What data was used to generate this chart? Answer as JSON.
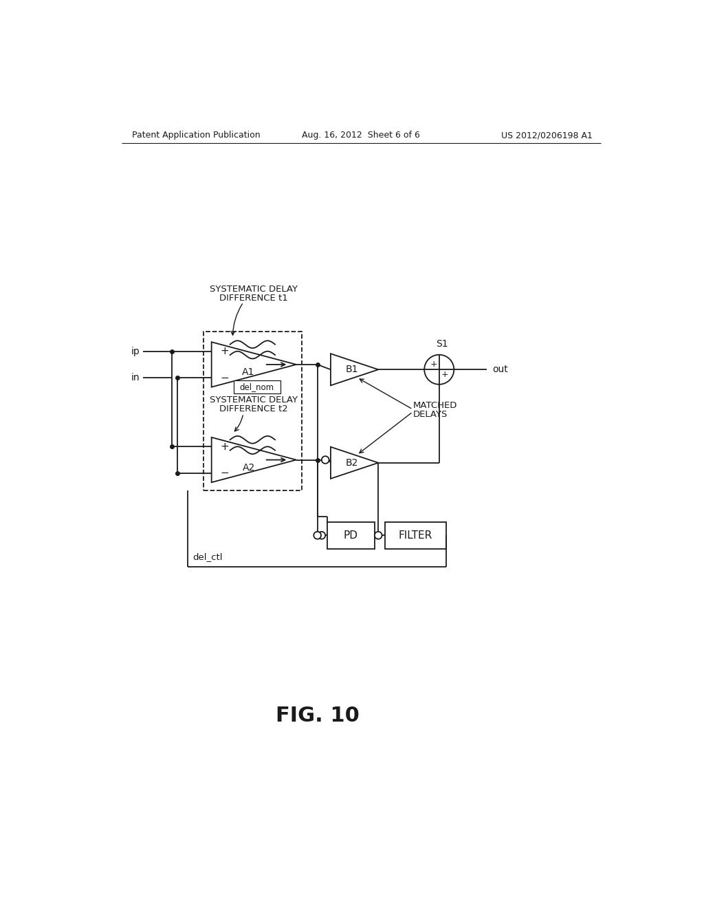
{
  "bg_color": "#ffffff",
  "line_color": "#1a1a1a",
  "line_width": 1.3,
  "header_left": "Patent Application Publication",
  "header_center": "Aug. 16, 2012  Sheet 6 of 6",
  "header_right": "US 2012/0206198 A1",
  "fig_label": "FIG. 10",
  "labels": {
    "ip": "ip",
    "in": "in",
    "out": "out",
    "A1": "A1",
    "A2": "A2",
    "B1": "B1",
    "B2": "B2",
    "S1": "S1",
    "PD": "PD",
    "FILTER": "FILTER",
    "del_nom": "del_nom",
    "del_ctl": "del_ctl",
    "sys_delay_1_line1": "SYSTEMATIC DELAY",
    "sys_delay_1_line2": "DIFFERENCE t1",
    "sys_delay_2_line1": "SYSTEMATIC DELAY",
    "sys_delay_2_line2": "DIFFERENCE t2",
    "matched_line1": "MATCHED",
    "matched_line2": "DELAYS"
  }
}
